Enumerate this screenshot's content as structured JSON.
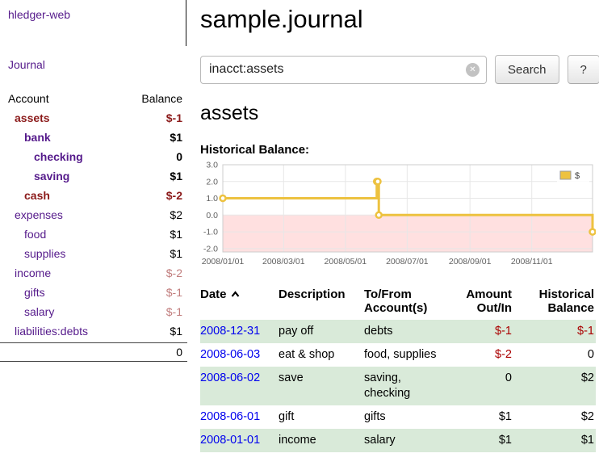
{
  "palette": {
    "link_purple": "#551a8b",
    "link_blue": "#0000ee",
    "negative_strong": "#8b1a1a",
    "negative_muted": "#c17d7d",
    "negative": "#aa0000",
    "row_green": "#d9ead9"
  },
  "sidebar": {
    "app_title": "hledger-web",
    "journal_link": "Journal",
    "accounts": {
      "header_account": "Account",
      "header_balance": "Balance",
      "rows": [
        {
          "name": "assets",
          "balance": "$-1",
          "depth": 1,
          "bold": true,
          "name_negative": true,
          "balance_negative": true
        },
        {
          "name": "bank",
          "balance": "$1",
          "depth": 2,
          "bold": true
        },
        {
          "name": "checking",
          "balance": "0",
          "depth": 3,
          "bold": true
        },
        {
          "name": "saving",
          "balance": "$1",
          "depth": 3,
          "bold": true
        },
        {
          "name": "cash",
          "balance": "$-2",
          "depth": 2,
          "bold": true,
          "name_negative": true,
          "balance_negative": true
        },
        {
          "name": "expenses",
          "balance": "$2",
          "depth": 1
        },
        {
          "name": "food",
          "balance": "$1",
          "depth": 2
        },
        {
          "name": "supplies",
          "balance": "$1",
          "depth": 2
        },
        {
          "name": "income",
          "balance": "$-2",
          "depth": 1,
          "balance_negative": true
        },
        {
          "name": "gifts",
          "balance": "$-1",
          "depth": 2,
          "balance_negative": true
        },
        {
          "name": "salary",
          "balance": "$-1",
          "depth": 2,
          "balance_negative": true
        },
        {
          "name": "liabilities:debts",
          "balance": "$1",
          "depth": 1
        }
      ],
      "total": "0"
    }
  },
  "main": {
    "title": "sample.journal",
    "search": {
      "value": "inacct:assets",
      "clear_icon": "✕",
      "button_label": "Search",
      "help_label": "?"
    },
    "account_heading": "assets",
    "chart_label": "Historical Balance:",
    "register": {
      "headers": [
        "Date",
        "Description",
        "To/From Account(s)",
        "Amount Out/In",
        "Historical Balance"
      ],
      "sort": "date-ascending",
      "rows": [
        {
          "date": "2008-12-31",
          "description": "pay off",
          "accounts": "debts",
          "amount": "$-1",
          "balance": "$-1",
          "shaded": true
        },
        {
          "date": "2008-06-03",
          "description": "eat & shop",
          "accounts": "food, supplies",
          "amount": "$-2",
          "balance": "0",
          "shaded": false
        },
        {
          "date": "2008-06-02",
          "description": "save",
          "accounts": "saving, checking",
          "amount": "0",
          "balance": "$2",
          "shaded": true
        },
        {
          "date": "2008-06-01",
          "description": "gift",
          "accounts": "gifts",
          "amount": "$1",
          "balance": "$2",
          "shaded": false
        },
        {
          "date": "2008-01-01",
          "description": "income",
          "accounts": "salary",
          "amount": "$1",
          "balance": "$1",
          "shaded": true
        }
      ]
    }
  },
  "chart_data": {
    "type": "line",
    "step": true,
    "title": "Historical Balance",
    "x_range": [
      "2008-01-01",
      "2008-12-31"
    ],
    "y_range": [
      -2.2,
      3.0
    ],
    "y_ticks": [
      3.0,
      2.0,
      1.0,
      0.0,
      -1.0,
      -2.0
    ],
    "x_ticks": [
      {
        "x": "2008-01-01",
        "label": "2008/01/01"
      },
      {
        "x": "2008-03-01",
        "label": "2008/03/01"
      },
      {
        "x": "2008-05-01",
        "label": "2008/05/01"
      },
      {
        "x": "2008-07-01",
        "label": "2008/07/01"
      },
      {
        "x": "2008-09-01",
        "label": "2008/09/01"
      },
      {
        "x": "2008-11-01",
        "label": "2008/11/01"
      }
    ],
    "grid": true,
    "negative_region_fill": "rgba(255,0,0,0.12)",
    "legend": {
      "position": "top-right",
      "label": "$"
    },
    "series": [
      {
        "name": "$",
        "color": "#edc240",
        "points": [
          {
            "x": "2008-01-01",
            "y": 1
          },
          {
            "x": "2008-06-01",
            "y": 2
          },
          {
            "x": "2008-06-02",
            "y": 2
          },
          {
            "x": "2008-06-03",
            "y": 0
          },
          {
            "x": "2008-12-31",
            "y": -1
          }
        ]
      }
    ]
  }
}
